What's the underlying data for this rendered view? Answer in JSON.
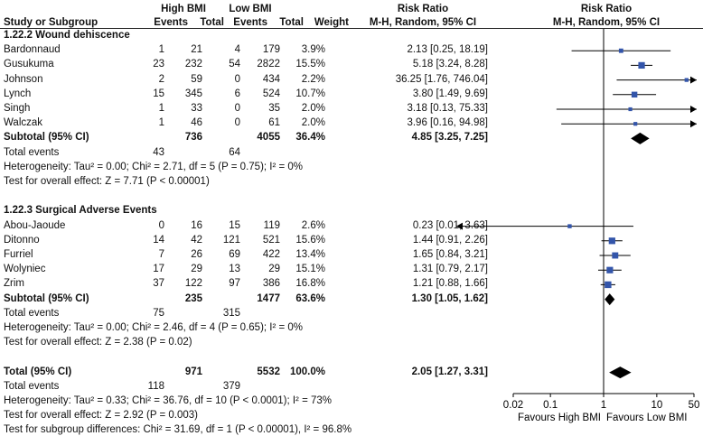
{
  "header": {
    "group1": "High BMI",
    "group2": "Low BMI",
    "rr_title": "Risk Ratio",
    "rr_sub": "M-H, Random, 95% CI",
    "plot_title": "Risk Ratio",
    "plot_sub": "M-H, Random, 95% CI",
    "study": "Study or Subgroup",
    "events": "Events",
    "total": "Total",
    "weight": "Weight"
  },
  "rows": [
    {
      "kind": "heading",
      "text": "1.22.2 Wound dehiscence"
    },
    {
      "kind": "study",
      "name": "Bardonnaud",
      "e1": "1",
      "n1": "21",
      "e2": "4",
      "n2": "179",
      "w": "3.9%",
      "ci": "2.13 [0.25, 18.19]"
    },
    {
      "kind": "study",
      "name": "Gusukuma",
      "e1": "23",
      "n1": "232",
      "e2": "54",
      "n2": "2822",
      "w": "15.5%",
      "ci": "5.18 [3.24, 8.28]"
    },
    {
      "kind": "study",
      "name": "Johnson",
      "e1": "2",
      "n1": "59",
      "e2": "0",
      "n2": "434",
      "w": "2.2%",
      "ci": "36.25 [1.76, 746.04]"
    },
    {
      "kind": "study",
      "name": "Lynch",
      "e1": "15",
      "n1": "345",
      "e2": "6",
      "n2": "524",
      "w": "10.7%",
      "ci": "3.80 [1.49, 9.69]"
    },
    {
      "kind": "study",
      "name": "Singh",
      "e1": "1",
      "n1": "33",
      "e2": "0",
      "n2": "35",
      "w": "2.0%",
      "ci": "3.18 [0.13, 75.33]"
    },
    {
      "kind": "study",
      "name": "Walczak",
      "e1": "1",
      "n1": "46",
      "e2": "0",
      "n2": "61",
      "w": "2.0%",
      "ci": "3.96 [0.16, 94.98]"
    },
    {
      "kind": "subtotal",
      "name": "Subtotal (95% CI)",
      "n1": "736",
      "n2": "4055",
      "w": "36.4%",
      "ci": "4.85 [3.25, 7.25]"
    },
    {
      "kind": "events",
      "name": "Total events",
      "e1": "43",
      "e2": "64"
    },
    {
      "kind": "text",
      "text": "Heterogeneity: Tau² = 0.00; Chi² = 2.71, df = 5 (P = 0.75); I² = 0%"
    },
    {
      "kind": "text",
      "text": "Test for overall effect: Z = 7.71 (P < 0.00001)"
    },
    {
      "kind": "blank"
    },
    {
      "kind": "heading",
      "text": "1.22.3 Surgical Adverse Events"
    },
    {
      "kind": "study",
      "name": "Abou-Jaoude",
      "e1": "0",
      "n1": "16",
      "e2": "15",
      "n2": "119",
      "w": "2.6%",
      "ci": "0.23 [0.01, 3.63]"
    },
    {
      "kind": "study",
      "name": "Ditonno",
      "e1": "14",
      "n1": "42",
      "e2": "121",
      "n2": "521",
      "w": "15.6%",
      "ci": "1.44 [0.91, 2.26]"
    },
    {
      "kind": "study",
      "name": "Furriel",
      "e1": "7",
      "n1": "26",
      "e2": "69",
      "n2": "422",
      "w": "13.4%",
      "ci": "1.65 [0.84, 3.21]"
    },
    {
      "kind": "study",
      "name": "Wolyniec",
      "e1": "17",
      "n1": "29",
      "e2": "13",
      "n2": "29",
      "w": "15.1%",
      "ci": "1.31 [0.79, 2.17]"
    },
    {
      "kind": "study",
      "name": "Zrim",
      "e1": "37",
      "n1": "122",
      "e2": "97",
      "n2": "386",
      "w": "16.8%",
      "ci": "1.21 [0.88, 1.66]"
    },
    {
      "kind": "subtotal",
      "name": "Subtotal (95% CI)",
      "n1": "235",
      "n2": "1477",
      "w": "63.6%",
      "ci": "1.30 [1.05, 1.62]"
    },
    {
      "kind": "events",
      "name": "Total events",
      "e1": "75",
      "e2": "315"
    },
    {
      "kind": "text",
      "text": "Heterogeneity: Tau² = 0.00; Chi² = 2.46, df = 4 (P = 0.65); I² = 0%"
    },
    {
      "kind": "text",
      "text": "Test for overall effect: Z = 2.38 (P = 0.02)"
    },
    {
      "kind": "blank"
    },
    {
      "kind": "total",
      "name": "Total (95% CI)",
      "n1": "971",
      "n2": "5532",
      "w": "100.0%",
      "ci": "2.05 [1.27, 3.31]"
    },
    {
      "kind": "events",
      "name": "Total events",
      "e1": "118",
      "e2": "379"
    },
    {
      "kind": "text",
      "text": "Heterogeneity: Tau² = 0.33; Chi² = 36.76, df = 10 (P < 0.0001); I² = 73%"
    },
    {
      "kind": "text",
      "text": "Test for overall effect: Z = 2.92 (P = 0.003)"
    },
    {
      "kind": "text",
      "text": "Test for subgroup differences: Chi² = 31.69, df = 1 (P < 0.00001), I² = 96.8%"
    }
  ],
  "axis": {
    "ticks": [
      "0.02",
      "0.1",
      "1",
      "10",
      "50"
    ],
    "favours_left": "Favours High BMI",
    "favours_right": "Favours Low BMI"
  },
  "colors": {
    "square": "#3355aa",
    "diamond": "#000000",
    "line": "#000000"
  },
  "chart_data": {
    "type": "forest",
    "scale": "log",
    "xlim": [
      0.02,
      50
    ],
    "reference_line": 1,
    "studies": [
      {
        "group": "1.22.2 Wound dehiscence",
        "name": "Bardonnaud",
        "rr": 2.13,
        "lo": 0.25,
        "hi": 18.19,
        "weight": 3.9
      },
      {
        "group": "1.22.2 Wound dehiscence",
        "name": "Gusukuma",
        "rr": 5.18,
        "lo": 3.24,
        "hi": 8.28,
        "weight": 15.5
      },
      {
        "group": "1.22.2 Wound dehiscence",
        "name": "Johnson",
        "rr": 36.25,
        "lo": 1.76,
        "hi": 746.04,
        "weight": 2.2
      },
      {
        "group": "1.22.2 Wound dehiscence",
        "name": "Lynch",
        "rr": 3.8,
        "lo": 1.49,
        "hi": 9.69,
        "weight": 10.7
      },
      {
        "group": "1.22.2 Wound dehiscence",
        "name": "Singh",
        "rr": 3.18,
        "lo": 0.13,
        "hi": 75.33,
        "weight": 2.0
      },
      {
        "group": "1.22.2 Wound dehiscence",
        "name": "Walczak",
        "rr": 3.96,
        "lo": 0.16,
        "hi": 94.98,
        "weight": 2.0
      },
      {
        "group": "1.22.3 Surgical Adverse Events",
        "name": "Abou-Jaoude",
        "rr": 0.23,
        "lo": 0.01,
        "hi": 3.63,
        "weight": 2.6
      },
      {
        "group": "1.22.3 Surgical Adverse Events",
        "name": "Ditonno",
        "rr": 1.44,
        "lo": 0.91,
        "hi": 2.26,
        "weight": 15.6
      },
      {
        "group": "1.22.3 Surgical Adverse Events",
        "name": "Furriel",
        "rr": 1.65,
        "lo": 0.84,
        "hi": 3.21,
        "weight": 13.4
      },
      {
        "group": "1.22.3 Surgical Adverse Events",
        "name": "Wolyniec",
        "rr": 1.31,
        "lo": 0.79,
        "hi": 2.17,
        "weight": 15.1
      },
      {
        "group": "1.22.3 Surgical Adverse Events",
        "name": "Zrim",
        "rr": 1.21,
        "lo": 0.88,
        "hi": 1.66,
        "weight": 16.8
      }
    ],
    "summaries": [
      {
        "name": "Subtotal (95% CI)",
        "group": "1.22.2 Wound dehiscence",
        "rr": 4.85,
        "lo": 3.25,
        "hi": 7.25
      },
      {
        "name": "Subtotal (95% CI)",
        "group": "1.22.3 Surgical Adverse Events",
        "rr": 1.3,
        "lo": 1.05,
        "hi": 1.62
      },
      {
        "name": "Total (95% CI)",
        "group": "overall",
        "rr": 2.05,
        "lo": 1.27,
        "hi": 3.31
      }
    ]
  }
}
